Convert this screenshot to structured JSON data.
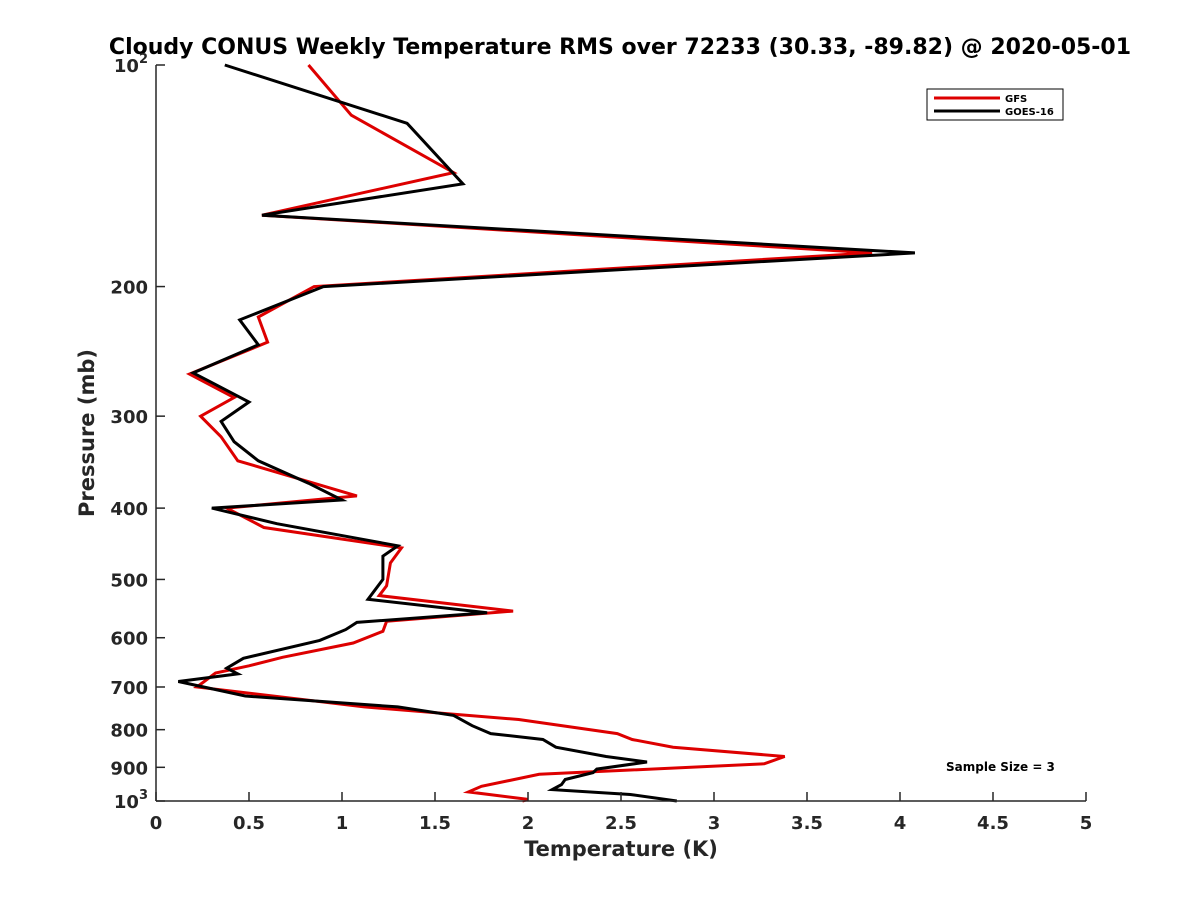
{
  "chart_data": {
    "type": "line",
    "title": "Cloudy CONUS Weekly Temperature RMS over 72233 (30.33, -89.82) @ 2020-05-01",
    "xlabel": "Temperature (K)",
    "ylabel": "Pressure (mb)",
    "xlim": [
      0,
      5
    ],
    "ylim": [
      100,
      1000
    ],
    "y_scale": "log",
    "y_reversed": true,
    "grid": false,
    "legend_position": "top-right",
    "annotation": "Sample Size = 3",
    "x_ticks": [
      0,
      0.5,
      1,
      1.5,
      2,
      2.5,
      3,
      3.5,
      4,
      4.5,
      5
    ],
    "x_tick_labels": [
      "0",
      "0.5",
      "1",
      "1.5",
      "2",
      "2.5",
      "3",
      "3.5",
      "4",
      "4.5",
      "5"
    ],
    "y_ticks": [
      100,
      200,
      300,
      400,
      500,
      600,
      700,
      800,
      900,
      1000
    ],
    "y_tick_labels": [
      {
        "base": "10",
        "sup": "2"
      },
      {
        "base": "200",
        "sup": ""
      },
      {
        "base": "300",
        "sup": ""
      },
      {
        "base": "400",
        "sup": ""
      },
      {
        "base": "500",
        "sup": ""
      },
      {
        "base": "600",
        "sup": ""
      },
      {
        "base": "700",
        "sup": ""
      },
      {
        "base": "800",
        "sup": ""
      },
      {
        "base": "900",
        "sup": ""
      },
      {
        "base": "10",
        "sup": "3"
      }
    ],
    "series": [
      {
        "name": "GFS",
        "color": "#dd0000",
        "points": [
          [
            0.82,
            100
          ],
          [
            1.05,
            117
          ],
          [
            1.6,
            140
          ],
          [
            0.57,
            160
          ],
          [
            3.85,
            180
          ],
          [
            0.85,
            200
          ],
          [
            0.55,
            220
          ],
          [
            0.6,
            238
          ],
          [
            0.18,
            263
          ],
          [
            0.42,
            283
          ],
          [
            0.24,
            300
          ],
          [
            0.35,
            320
          ],
          [
            0.44,
            345
          ],
          [
            1.08,
            385
          ],
          [
            0.38,
            400
          ],
          [
            0.58,
            425
          ],
          [
            1.32,
            453
          ],
          [
            1.26,
            475
          ],
          [
            1.24,
            510
          ],
          [
            1.2,
            526
          ],
          [
            1.92,
            552
          ],
          [
            1.24,
            570
          ],
          [
            1.22,
            588
          ],
          [
            1.06,
            610
          ],
          [
            0.68,
            638
          ],
          [
            0.5,
            655
          ],
          [
            0.32,
            670
          ],
          [
            0.22,
            700
          ],
          [
            1.12,
            745
          ],
          [
            1.95,
            775
          ],
          [
            2.48,
            810
          ],
          [
            2.56,
            825
          ],
          [
            2.78,
            845
          ],
          [
            3.38,
            870
          ],
          [
            3.27,
            890
          ],
          [
            2.06,
            920
          ],
          [
            1.75,
            955
          ],
          [
            1.68,
            972
          ],
          [
            2.0,
            995
          ],
          [
            1.97,
            1000
          ]
        ]
      },
      {
        "name": "GOES-16",
        "color": "#000000",
        "points": [
          [
            0.37,
            100
          ],
          [
            1.35,
            120
          ],
          [
            1.65,
            145
          ],
          [
            0.57,
            160
          ],
          [
            4.08,
            180
          ],
          [
            0.9,
            200
          ],
          [
            0.45,
            222
          ],
          [
            0.55,
            240
          ],
          [
            0.2,
            262
          ],
          [
            0.5,
            287
          ],
          [
            0.35,
            305
          ],
          [
            0.42,
            325
          ],
          [
            0.55,
            345
          ],
          [
            0.82,
            370
          ],
          [
            1.0,
            390
          ],
          [
            0.3,
            400
          ],
          [
            0.65,
            420
          ],
          [
            1.3,
            450
          ],
          [
            1.22,
            465
          ],
          [
            1.22,
            500
          ],
          [
            1.14,
            532
          ],
          [
            1.78,
            555
          ],
          [
            1.08,
            572
          ],
          [
            1.02,
            585
          ],
          [
            0.88,
            605
          ],
          [
            0.47,
            640
          ],
          [
            0.38,
            660
          ],
          [
            0.44,
            672
          ],
          [
            0.12,
            688
          ],
          [
            0.48,
            720
          ],
          [
            1.3,
            745
          ],
          [
            1.6,
            765
          ],
          [
            1.7,
            790
          ],
          [
            1.8,
            810
          ],
          [
            2.08,
            825
          ],
          [
            2.15,
            845
          ],
          [
            2.42,
            870
          ],
          [
            2.64,
            885
          ],
          [
            2.37,
            905
          ],
          [
            2.35,
            915
          ],
          [
            2.2,
            935
          ],
          [
            2.18,
            950
          ],
          [
            2.13,
            965
          ],
          [
            2.55,
            980
          ],
          [
            2.8,
            1000
          ]
        ]
      }
    ]
  }
}
